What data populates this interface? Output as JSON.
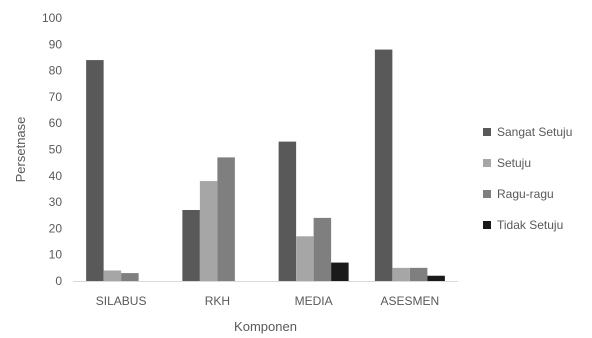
{
  "chart_data": {
    "type": "bar",
    "title": "",
    "xlabel": "Komponen",
    "ylabel": "Persetnase",
    "categories": [
      "SILABUS",
      "RKH",
      "MEDIA",
      "ASESMEN"
    ],
    "ylim": [
      0,
      100
    ],
    "yticks": [
      0,
      10,
      20,
      30,
      40,
      50,
      60,
      70,
      80,
      90,
      100
    ],
    "grid": false,
    "legend_position": "right",
    "series": [
      {
        "name": "Sangat Setuju",
        "color": "#595959",
        "values": [
          84,
          27,
          53,
          88
        ]
      },
      {
        "name": "Setuju",
        "color": "#a6a6a6",
        "values": [
          4,
          38,
          17,
          5
        ]
      },
      {
        "name": "Ragu-ragu",
        "color": "#7f7f7f",
        "values": [
          3,
          47,
          24,
          5
        ]
      },
      {
        "name": "Tidak Setuju",
        "color": "#1a1a1a",
        "values": [
          0,
          0,
          7,
          2
        ]
      }
    ]
  }
}
